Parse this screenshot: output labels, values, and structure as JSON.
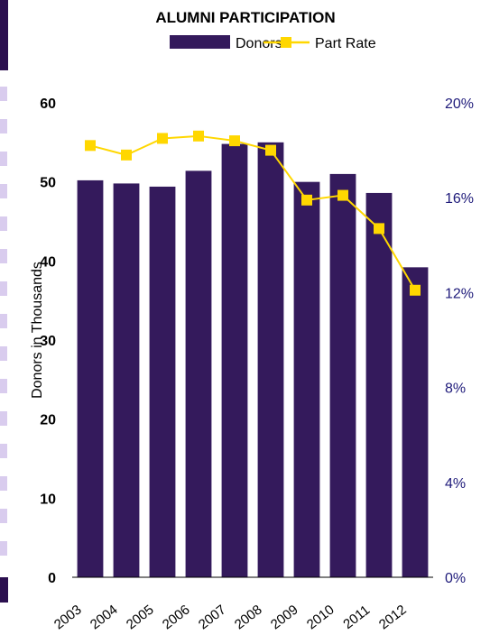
{
  "chart_data": {
    "type": "bar",
    "title": "ALUMNI PARTICIPATION",
    "categories": [
      "2003",
      "2004",
      "2005",
      "2006",
      "2007",
      "2008",
      "2009",
      "2010",
      "2011",
      "2012"
    ],
    "series": [
      {
        "name": "Donors",
        "type": "bar",
        "axis": "left",
        "color": "#341a5c",
        "values": [
          50.2,
          49.8,
          49.4,
          51.4,
          54.8,
          55.0,
          50.0,
          51.0,
          48.6,
          39.2
        ]
      },
      {
        "name": "Part Rate",
        "type": "line",
        "axis": "right",
        "color": "#ffd700",
        "values": [
          18.2,
          17.8,
          18.5,
          18.6,
          18.4,
          18.0,
          15.9,
          16.1,
          14.7,
          12.1
        ]
      }
    ],
    "ylabel": "Donors in Thousands",
    "ylim": [
      0,
      60
    ],
    "yticks": [
      0,
      10,
      20,
      30,
      40,
      50,
      60
    ],
    "y2lim": [
      0,
      20
    ],
    "y2ticks": [
      "0%",
      "4%",
      "8%",
      "12%",
      "16%",
      "20%"
    ],
    "y2tick_values": [
      0,
      4,
      8,
      12,
      16,
      20
    ],
    "legend_position": "top-center",
    "grid": false
  }
}
